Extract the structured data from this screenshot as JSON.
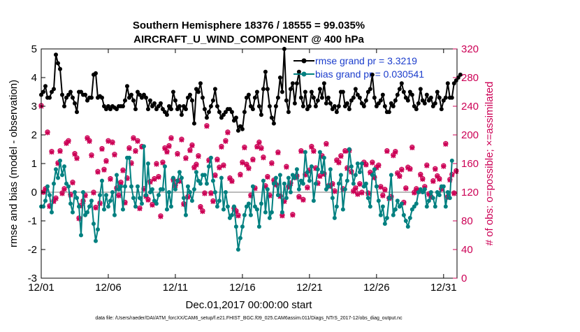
{
  "chart_data": {
    "type": "line",
    "title_line1": "Southern Hemisphere 18376 / 18555 = 99.035%",
    "title_line2": "AIRCRAFT_U_WIND_COMPONENT @ 400 hPa",
    "xlabel": "Dec.01,2017 00:00:00 start",
    "ylabel_left": "rmse and bias (model - observation)",
    "ylabel_right": "# of obs: o=possible; ×=assimilated",
    "footer": "data file: /Users/raeder/DAI/ATM_forcXX/CAM6_setup/f.e21.FHIST_BGC.f09_025.CAM6assim.011/Diags_NTrS_2017-12/obs_diag_output.nc",
    "xlim": [
      0,
      31
    ],
    "ylim_left": [
      -3,
      5
    ],
    "ylim_right": [
      0,
      320
    ],
    "x_ticks": [
      0,
      5,
      10,
      15,
      20,
      25,
      30
    ],
    "x_tick_labels": [
      "12/01",
      "12/06",
      "12/11",
      "12/16",
      "12/21",
      "12/26",
      "12/31"
    ],
    "y_left_ticks": [
      -3,
      -2,
      -1,
      0,
      1,
      2,
      3,
      4,
      5
    ],
    "y_right_ticks": [
      0,
      40,
      80,
      120,
      160,
      200,
      240,
      280,
      320
    ],
    "legend": [
      {
        "label": "rmse grand pr = 3.3219",
        "color": "#000000"
      },
      {
        "label": "bias grand pr = 0.030541",
        "color": "#008080"
      }
    ],
    "colors": {
      "rmse": "#000000",
      "bias": "#008080",
      "obs": "#cc0055",
      "zero_line": "#bbbbbb",
      "legend_text": "#1a3ccc"
    },
    "series": [
      {
        "name": "rmse",
        "values": [
          3.4,
          3.5,
          3.7,
          3.3,
          3.3,
          3.5,
          3.6,
          4.8,
          4.5,
          4.3,
          3.4,
          3.0,
          3.3,
          3.4,
          3.5,
          3.3,
          3.1,
          2.8,
          3.5,
          3.5,
          3.4,
          3.4,
          3.2,
          3.3,
          3.3,
          4.1,
          4.15,
          3.3,
          3.35,
          3.3,
          3.0,
          2.9,
          3.0,
          2.9,
          3.0,
          2.95,
          2.9,
          3.0,
          3.0,
          3.0,
          3.2,
          3.7,
          3.3,
          3.4,
          3.2,
          2.9,
          3.5,
          3.4,
          3.3,
          3.4,
          3.3,
          2.9,
          3.2,
          3.0,
          3.1,
          2.9,
          3.0,
          3.1,
          2.9,
          2.8,
          2.7,
          3.0,
          2.9,
          3.5,
          3.2,
          2.9,
          3.0,
          2.7,
          3.0,
          2.9,
          3.3,
          3.4,
          3.2,
          2.4,
          3.6,
          3.5,
          3.8,
          3.3,
          2.9,
          2.6,
          2.8,
          3.0,
          3.2,
          3.6,
          3.0,
          2.8,
          2.6,
          2.7,
          2.8,
          2.9,
          2.9,
          2.8,
          2.5,
          2.6,
          2.15,
          2.3,
          2.2,
          2.8,
          3.3,
          3.4,
          3.0,
          2.9,
          3.3,
          3.5,
          3.0,
          2.7,
          3.6,
          4.2,
          3.6,
          3.0,
          2.6,
          2.4,
          3.0,
          3.3,
          4.0,
          3.5,
          5.0,
          3.2,
          2.8,
          3.6,
          3.8,
          3.1,
          3.8,
          4.2,
          3.3,
          3.0,
          3.5,
          2.9,
          3.0,
          3.5,
          3.3,
          3.0,
          3.2,
          3.6,
          3.3,
          3.8,
          3.1,
          3.3,
          3.1,
          2.9,
          3.0,
          2.8,
          3.0,
          3.5,
          3.5,
          3.0,
          3.1,
          2.9,
          3.2,
          3.3,
          3.6,
          3.4,
          3.3,
          3.1,
          3.0,
          3.2,
          3.5,
          3.6,
          4.1,
          3.3,
          3.0,
          3.1,
          3.2,
          3.4,
          3.0,
          2.8,
          2.8,
          3.1,
          3.0,
          3.2,
          3.4,
          3.6,
          3.8,
          3.5,
          3.3,
          3.2,
          3.5,
          3.4,
          3.0,
          2.9,
          3.1,
          3.6,
          3.2,
          3.1,
          3.4,
          3.2,
          3.3,
          3.0,
          3.1,
          3.5,
          3.3,
          2.9,
          3.2,
          3.3,
          3.8,
          3.3,
          3.3,
          3.8,
          3.9,
          4.0,
          4.1
        ],
        "x_start": 0,
        "x_step": 0.15625
      },
      {
        "name": "bias",
        "values": [
          -0.5,
          -0.5,
          -0.3,
          0.2,
          -0.1,
          -0.7,
          0.3,
          0.8,
          0.5,
          1.1,
          0.6,
          0.9,
          0.3,
          0.2,
          -0.4,
          -0.7,
          0.0,
          -0.2,
          -0.5,
          -1.5,
          0.0,
          -0.8,
          -0.7,
          -0.5,
          -0.3,
          -1.1,
          -1.7,
          -1.3,
          -0.1,
          0.4,
          -0.6,
          -0.1,
          -0.5,
          -0.3,
          0.0,
          -0.8,
          0.6,
          0.1,
          0.2,
          -0.6,
          0.2,
          1.2,
          1.2,
          0.2,
          -0.2,
          -0.5,
          0.2,
          -0.2,
          -0.4,
          1.6,
          -0.1,
          1.0,
          0.0,
          0.1,
          -0.3,
          -0.4,
          -0.1,
          0.1,
          0.1,
          0.9,
          -0.6,
          0.0,
          -0.5,
          0.5,
          0.1,
          0.4,
          0.7,
          0.5,
          -0.2,
          -0.8,
          0.2,
          0.0,
          -0.3,
          0.1,
          0.7,
          0.4,
          0.3,
          0.6,
          0.6,
          0.3,
          0.9,
          1.2,
          0.4,
          0.0,
          -0.5,
          -0.3,
          0.5,
          -0.6,
          0.0,
          -0.5,
          -0.9,
          -0.8,
          -0.5,
          -1.2,
          -2.0,
          -1.6,
          -1.2,
          -0.8,
          -0.5,
          -0.4,
          -0.8,
          0.2,
          -0.5,
          -0.6,
          -1.2,
          -0.4,
          0.4,
          -0.7,
          0.1,
          -0.9,
          -0.7,
          0.3,
          0.5,
          -0.1,
          0.6,
          -0.7,
          0.3,
          -0.2,
          0.5,
          0.0,
          0.6,
          0.5,
          0.8,
          0.1,
          0.4,
          0.3,
          1.4,
          0.7,
          0.4,
          0.9,
          -0.3,
          0.3,
          0.8,
          1.4,
          0.7,
          1.2,
          0.1,
          0.2,
          0.8,
          -0.2,
          -0.9,
          -0.5,
          0.3,
          0.6,
          -0.6,
          0.1,
          0.4,
          1.5,
          0.9,
          0.3,
          0.6,
          1.0,
          0.7,
          1.0,
          0.2,
          0.3,
          -0.2,
          -0.5,
          0.6,
          0.8,
          0.2,
          -0.3,
          -0.8,
          -0.5,
          -1.1,
          -0.9,
          -0.2,
          0.6,
          -0.8,
          -0.6,
          -0.3,
          -0.5,
          -0.4,
          -0.8,
          -1.0,
          -1.2,
          -0.9,
          -0.6,
          -0.5,
          -0.4,
          0.0,
          0.1,
          0.0,
          0.1,
          -0.5,
          -0.3,
          0.0,
          -0.2,
          -0.5,
          0.0,
          -0.1,
          0.2,
          0.2,
          -0.5,
          0.0,
          -0.2,
          1.1
        ],
        "x_start": 0,
        "x_step": 0.15625
      },
      {
        "name": "obs_possible",
        "values": [
          241,
          120,
          125,
          204,
          101,
          177,
          108,
          112,
          161,
          178,
          119,
          125,
          189,
          192,
          117,
          134,
          174,
          168,
          84,
          102,
          108,
          116,
          196,
          192,
          172,
          120,
          99,
          149,
          105,
          181,
          152,
          164,
          192,
          139,
          190,
          173,
          126,
          116,
          134,
          151,
          106,
          140,
          182,
          161,
          196,
          178,
          192,
          98,
          184,
          125,
          115,
          110,
          135,
          103,
          139,
          160,
          142,
          87,
          162,
          182,
          177,
          185,
          196,
          138,
          130,
          174,
          136,
          194,
          104,
          168,
          114,
          179,
          186,
          155,
          159,
          171,
          100,
          94,
          119,
          213,
          165,
          119,
          108,
          144,
          166,
          155,
          184,
          158,
          192,
          204,
          140,
          136,
          98,
          94,
          88,
          145,
          162,
          183,
          159,
          154,
          116,
          166,
          126,
          184,
          190,
          182,
          169,
          129,
          142,
          116,
          161,
          137,
          131,
          176,
          115,
          88,
          108,
          156,
          128,
          133,
          89,
          141,
          143,
          114,
          178,
          110,
          145,
          127,
          151,
          184,
          178,
          154,
          133,
          143,
          171,
          146,
          188,
          129,
          129,
          132,
          122,
          165,
          162,
          171,
          125,
          178,
          154,
          179,
          149,
          122,
          126,
          118,
          132,
          120,
          162,
          159,
          119,
          148,
          162,
          141,
          155,
          158,
          128,
          116,
          124,
          178,
          112,
          114,
          172,
          177,
          147,
          143,
          152,
          106,
          126,
          155,
          153,
          183,
          120,
          125,
          122,
          145,
          139,
          128,
          158,
          118,
          114,
          136,
          153,
          143,
          139,
          125,
          157,
          188,
          114,
          138,
          145,
          119,
          150
        ],
        "x_start": 0,
        "x_step": 0.15625
      },
      {
        "name": "obs_assimilated",
        "values": [
          240,
          120,
          124,
          203,
          100,
          176,
          107,
          111,
          160,
          177,
          118,
          124,
          188,
          191,
          116,
          133,
          173,
          167,
          83,
          101,
          107,
          115,
          195,
          191,
          171,
          119,
          98,
          148,
          104,
          180,
          151,
          163,
          191,
          138,
          189,
          172,
          125,
          115,
          133,
          150,
          105,
          139,
          181,
          160,
          195,
          177,
          191,
          97,
          183,
          124,
          114,
          109,
          134,
          102,
          138,
          159,
          141,
          86,
          161,
          181,
          176,
          184,
          195,
          137,
          129,
          173,
          135,
          193,
          103,
          167,
          113,
          178,
          185,
          154,
          158,
          170,
          99,
          93,
          118,
          212,
          164,
          118,
          107,
          143,
          165,
          154,
          183,
          157,
          191,
          203,
          139,
          135,
          97,
          93,
          87,
          144,
          161,
          182,
          158,
          153,
          115,
          165,
          125,
          183,
          189,
          181,
          168,
          128,
          141,
          115,
          160,
          136,
          130,
          175,
          114,
          87,
          107,
          155,
          127,
          132,
          88,
          140,
          142,
          113,
          177,
          109,
          144,
          126,
          150,
          183,
          177,
          153,
          132,
          142,
          170,
          145,
          187,
          128,
          128,
          131,
          121,
          164,
          161,
          170,
          124,
          177,
          153,
          178,
          148,
          121,
          125,
          117,
          131,
          119,
          161,
          158,
          118,
          147,
          161,
          140,
          154,
          157,
          127,
          115,
          123,
          177,
          111,
          113,
          171,
          176,
          146,
          142,
          151,
          105,
          125,
          154,
          152,
          182,
          119,
          124,
          121,
          144,
          138,
          127,
          157,
          117,
          113,
          135,
          152,
          142,
          138,
          124,
          156,
          187,
          113,
          137,
          144,
          118,
          149
        ],
        "x_start": 0,
        "x_step": 0.15625
      }
    ]
  }
}
